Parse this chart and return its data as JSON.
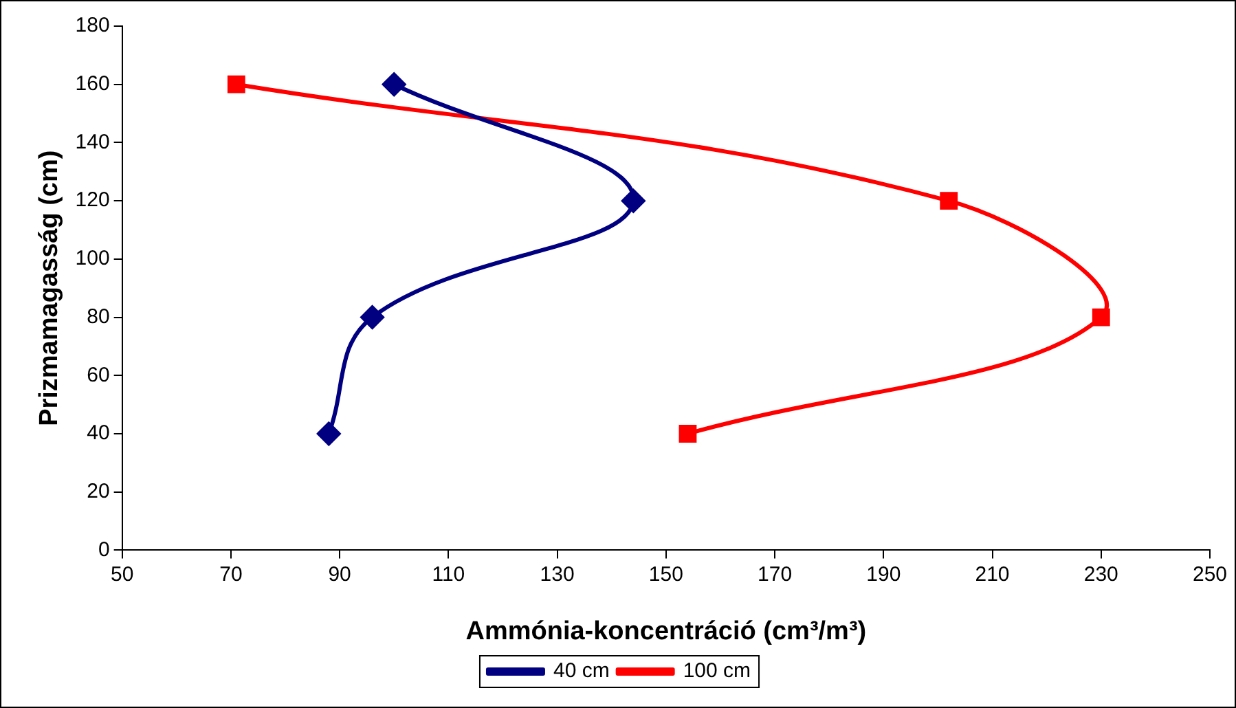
{
  "chart_data": {
    "type": "line",
    "xlabel": "Ammónia-koncentráció (cm³/m³)",
    "ylabel": "Prizmamagasság (cm)",
    "xlim": [
      50,
      250
    ],
    "xticks": [
      50,
      70,
      90,
      110,
      130,
      150,
      170,
      190,
      210,
      230,
      250
    ],
    "ylim": [
      0,
      180
    ],
    "yticks": [
      0,
      20,
      40,
      60,
      80,
      100,
      120,
      140,
      160,
      180
    ],
    "grid": false,
    "legend": "bottom",
    "line_style": "solid",
    "series": [
      {
        "name": "40 cm",
        "color": "#000080",
        "marker": "diamond",
        "x": [
          100,
          144,
          96,
          88
        ],
        "values": [
          160,
          120,
          80,
          40
        ]
      },
      {
        "name": "100 cm",
        "color": "#ff0000",
        "marker": "square",
        "x": [
          71,
          202,
          230,
          154
        ],
        "values": [
          160,
          120,
          80,
          40
        ]
      }
    ]
  }
}
